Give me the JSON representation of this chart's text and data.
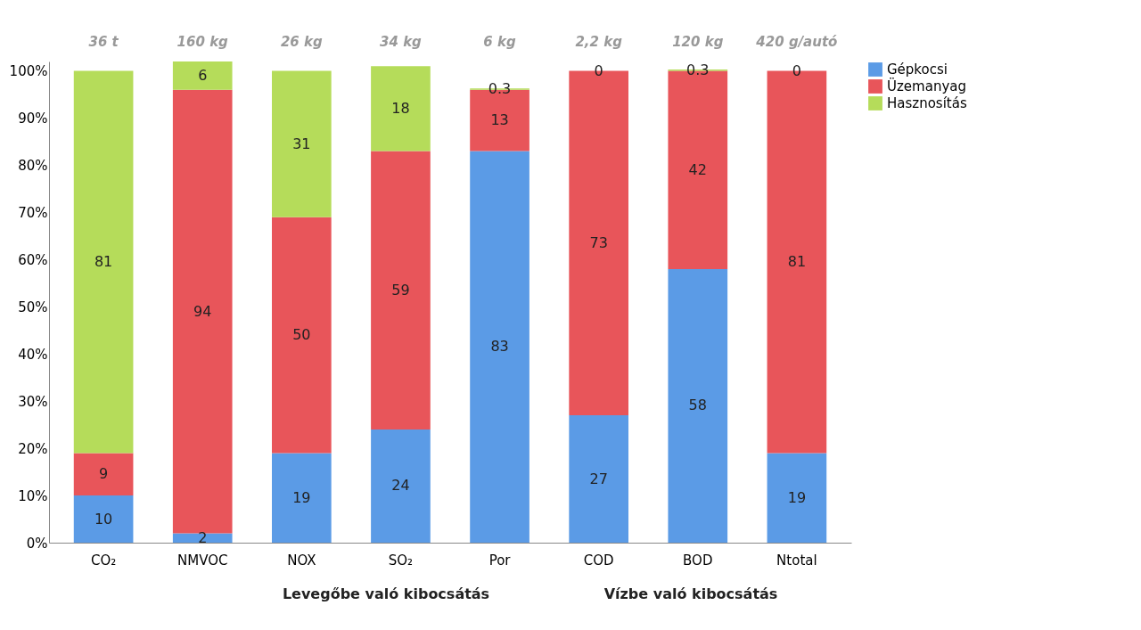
{
  "chart_data": {
    "type": "bar",
    "stacked": true,
    "categories": [
      "CO₂",
      "NMVOC",
      "NOX",
      "SO₂",
      "Por",
      "COD",
      "BOD",
      "Ntotal"
    ],
    "series": [
      {
        "name": "Gépkocsi",
        "color": "#5b9be6",
        "values": [
          10,
          2,
          19,
          24,
          83,
          27,
          58,
          19
        ]
      },
      {
        "name": "Üzemanyag",
        "color": "#e8555a",
        "values": [
          9,
          94,
          50,
          59,
          13,
          73,
          42,
          81
        ]
      },
      {
        "name": "Hasznosítás",
        "color": "#b5dc5a",
        "values": [
          81,
          6,
          31,
          18,
          0.3,
          0,
          0.3,
          0
        ]
      }
    ],
    "ylim": [
      0,
      102
    ],
    "yticks": [
      {
        "value": 0,
        "label": "0%"
      },
      {
        "value": 10,
        "label": "10%"
      },
      {
        "value": 20,
        "label": "20%"
      },
      {
        "value": 30,
        "label": "30%"
      },
      {
        "value": 40,
        "label": "40%"
      },
      {
        "value": 50,
        "label": "50%"
      },
      {
        "value": 60,
        "label": "60%"
      },
      {
        "value": 70,
        "label": "70%"
      },
      {
        "value": 80,
        "label": "80%"
      },
      {
        "value": 90,
        "label": "90%"
      },
      {
        "value": 100,
        "label": "100%"
      }
    ],
    "data_labels": true,
    "grid": false,
    "legend": "top right",
    "annotations": [
      "36 t",
      "160 kg",
      "26 kg",
      "34 kg",
      "6 kg",
      "2,2 kg",
      "120 kg",
      "420 g/autó",
      "Levegőbe való kibocsátás",
      "Vízbe való kibocsátás"
    ]
  }
}
